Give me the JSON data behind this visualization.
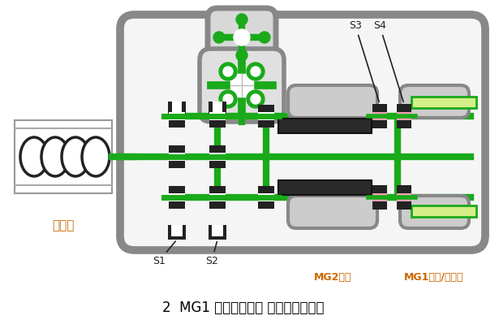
{
  "bg_color": "#ffffff",
  "green": "#1aaa1a",
  "gray": "#888888",
  "light_gray": "#cccccc",
  "dark": "#222222",
  "light_green": "#d4ee88",
  "pink": "#f0a0b0",
  "white": "#ffffff",
  "title": "2  MG1 电机／发电机 发动机混合驱动",
  "label_engine": "发动机",
  "label_s1": "S1",
  "label_s2": "S2",
  "label_s3": "S3",
  "label_s4": "S4",
  "label_mg2": "MG2电机",
  "label_mg1": "MG1电机/发电机"
}
